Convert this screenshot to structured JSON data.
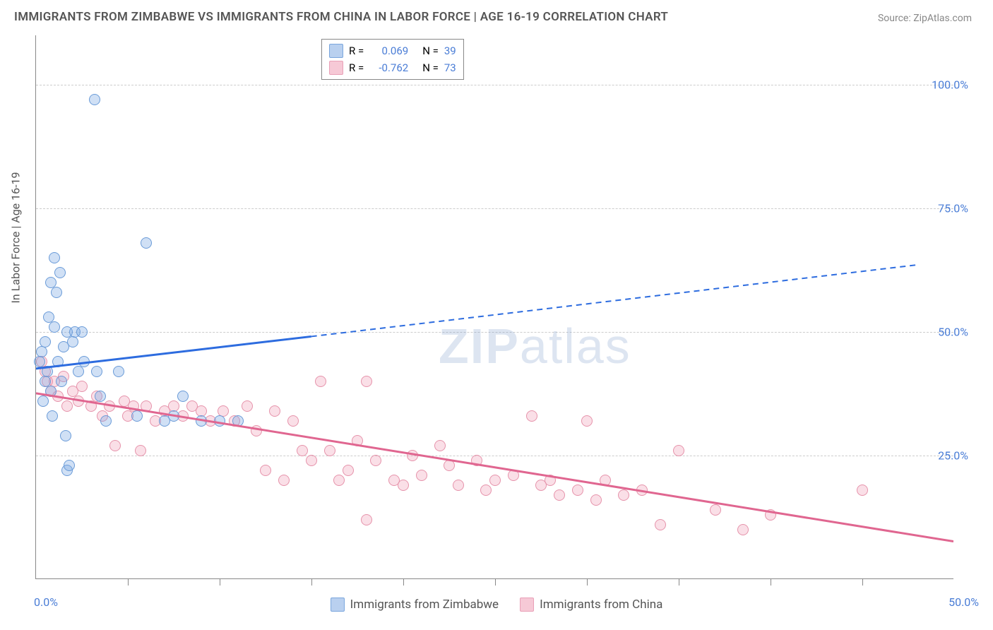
{
  "title": "IMMIGRANTS FROM ZIMBABWE VS IMMIGRANTS FROM CHINA IN LABOR FORCE | AGE 16-19 CORRELATION CHART",
  "source": "Source: ZipAtlas.com",
  "watermark_bold": "ZIP",
  "watermark_light": "atlas",
  "y_axis_label": "In Labor Force | Age 16-19",
  "chart": {
    "type": "scatter",
    "background_color": "#ffffff",
    "grid_color": "#cccccc",
    "axis_color": "#888888",
    "tick_label_color": "#4a7dd6",
    "xlim": [
      0,
      50
    ],
    "ylim": [
      0,
      110
    ],
    "y_ticks": [
      {
        "value": 25,
        "label": "25.0%"
      },
      {
        "value": 50,
        "label": "50.0%"
      },
      {
        "value": 75,
        "label": "75.0%"
      },
      {
        "value": 100,
        "label": "100.0%"
      }
    ],
    "x_tick_positions": [
      5,
      10,
      15,
      20,
      25,
      30,
      35,
      40,
      45
    ],
    "x_left_label": {
      "value": 0,
      "label": "0.0%"
    },
    "x_right_label": {
      "value": 50,
      "label": "50.0%"
    },
    "series": [
      {
        "id": "zimbabwe",
        "legend_label": "Immigrants from Zimbabwe",
        "fill_color": "rgba(120,165,225,0.35)",
        "stroke_color": "#6a9bd8",
        "line_color": "#2d6cdf",
        "swatch_fill": "#b9d0ef",
        "swatch_border": "#7aa6dd",
        "marker_radius": 8,
        "R_label": "R =",
        "R_value": "0.069",
        "N_label": "N =",
        "N_value": "39",
        "trend": {
          "x_start": 0,
          "y_start": 42.5,
          "x_solid_end": 15,
          "y_solid_end": 49,
          "x_end": 48,
          "y_end": 63.5,
          "dash": true
        },
        "points": [
          {
            "x": 0.2,
            "y": 44
          },
          {
            "x": 0.3,
            "y": 46
          },
          {
            "x": 0.4,
            "y": 36
          },
          {
            "x": 0.5,
            "y": 40
          },
          {
            "x": 0.5,
            "y": 48
          },
          {
            "x": 0.6,
            "y": 42
          },
          {
            "x": 0.7,
            "y": 53
          },
          {
            "x": 0.8,
            "y": 38
          },
          {
            "x": 0.8,
            "y": 60
          },
          {
            "x": 0.9,
            "y": 33
          },
          {
            "x": 1.0,
            "y": 51
          },
          {
            "x": 1.0,
            "y": 65
          },
          {
            "x": 1.1,
            "y": 58
          },
          {
            "x": 1.2,
            "y": 44
          },
          {
            "x": 1.3,
            "y": 62
          },
          {
            "x": 1.4,
            "y": 40
          },
          {
            "x": 1.5,
            "y": 47
          },
          {
            "x": 1.6,
            "y": 29
          },
          {
            "x": 1.7,
            "y": 50
          },
          {
            "x": 1.7,
            "y": 22
          },
          {
            "x": 1.8,
            "y": 23
          },
          {
            "x": 2.0,
            "y": 48
          },
          {
            "x": 2.1,
            "y": 50
          },
          {
            "x": 2.3,
            "y": 42
          },
          {
            "x": 2.5,
            "y": 50
          },
          {
            "x": 2.6,
            "y": 44
          },
          {
            "x": 3.2,
            "y": 97
          },
          {
            "x": 3.3,
            "y": 42
          },
          {
            "x": 3.5,
            "y": 37
          },
          {
            "x": 3.8,
            "y": 32
          },
          {
            "x": 4.5,
            "y": 42
          },
          {
            "x": 5.5,
            "y": 33
          },
          {
            "x": 6.0,
            "y": 68
          },
          {
            "x": 7.0,
            "y": 32
          },
          {
            "x": 7.5,
            "y": 33
          },
          {
            "x": 8.0,
            "y": 37
          },
          {
            "x": 9.0,
            "y": 32
          },
          {
            "x": 10.0,
            "y": 32
          },
          {
            "x": 11.0,
            "y": 32
          }
        ]
      },
      {
        "id": "china",
        "legend_label": "Immigrants from China",
        "fill_color": "rgba(240,150,175,0.30)",
        "stroke_color": "#e693ab",
        "line_color": "#e06690",
        "swatch_fill": "#f6c9d6",
        "swatch_border": "#e9a0b7",
        "marker_radius": 8,
        "R_label": "R =",
        "R_value": "-0.762",
        "N_label": "N =",
        "N_value": "73",
        "trend": {
          "x_start": 0,
          "y_start": 37.5,
          "x_end": 50,
          "y_end": 7.5,
          "dash": false
        },
        "points": [
          {
            "x": 0.3,
            "y": 44
          },
          {
            "x": 0.5,
            "y": 42
          },
          {
            "x": 0.6,
            "y": 40
          },
          {
            "x": 0.8,
            "y": 38
          },
          {
            "x": 1.0,
            "y": 40
          },
          {
            "x": 1.2,
            "y": 37
          },
          {
            "x": 1.5,
            "y": 41
          },
          {
            "x": 1.7,
            "y": 35
          },
          {
            "x": 2.0,
            "y": 38
          },
          {
            "x": 2.3,
            "y": 36
          },
          {
            "x": 2.5,
            "y": 39
          },
          {
            "x": 3.0,
            "y": 35
          },
          {
            "x": 3.3,
            "y": 37
          },
          {
            "x": 3.6,
            "y": 33
          },
          {
            "x": 4.0,
            "y": 35
          },
          {
            "x": 4.3,
            "y": 27
          },
          {
            "x": 4.8,
            "y": 36
          },
          {
            "x": 5.0,
            "y": 33
          },
          {
            "x": 5.3,
            "y": 35
          },
          {
            "x": 5.7,
            "y": 26
          },
          {
            "x": 6.0,
            "y": 35
          },
          {
            "x": 6.5,
            "y": 32
          },
          {
            "x": 7.0,
            "y": 34
          },
          {
            "x": 7.5,
            "y": 35
          },
          {
            "x": 8.0,
            "y": 33
          },
          {
            "x": 8.5,
            "y": 35
          },
          {
            "x": 9.0,
            "y": 34
          },
          {
            "x": 9.5,
            "y": 32
          },
          {
            "x": 10.2,
            "y": 34
          },
          {
            "x": 10.8,
            "y": 32
          },
          {
            "x": 11.5,
            "y": 35
          },
          {
            "x": 12.0,
            "y": 30
          },
          {
            "x": 12.5,
            "y": 22
          },
          {
            "x": 13.0,
            "y": 34
          },
          {
            "x": 13.5,
            "y": 20
          },
          {
            "x": 14.0,
            "y": 32
          },
          {
            "x": 14.5,
            "y": 26
          },
          {
            "x": 15.0,
            "y": 24
          },
          {
            "x": 15.5,
            "y": 40
          },
          {
            "x": 16.0,
            "y": 26
          },
          {
            "x": 16.5,
            "y": 20
          },
          {
            "x": 17.0,
            "y": 22
          },
          {
            "x": 17.5,
            "y": 28
          },
          {
            "x": 18.0,
            "y": 12
          },
          {
            "x": 18.0,
            "y": 40
          },
          {
            "x": 18.5,
            "y": 24
          },
          {
            "x": 19.5,
            "y": 20
          },
          {
            "x": 20.0,
            "y": 19
          },
          {
            "x": 20.5,
            "y": 25
          },
          {
            "x": 21.0,
            "y": 21
          },
          {
            "x": 22.0,
            "y": 27
          },
          {
            "x": 22.5,
            "y": 23
          },
          {
            "x": 23.0,
            "y": 19
          },
          {
            "x": 24.0,
            "y": 24
          },
          {
            "x": 24.5,
            "y": 18
          },
          {
            "x": 25.0,
            "y": 20
          },
          {
            "x": 26.0,
            "y": 21
          },
          {
            "x": 27.0,
            "y": 33
          },
          {
            "x": 27.5,
            "y": 19
          },
          {
            "x": 28.0,
            "y": 20
          },
          {
            "x": 28.5,
            "y": 17
          },
          {
            "x": 29.5,
            "y": 18
          },
          {
            "x": 30.0,
            "y": 32
          },
          {
            "x": 30.5,
            "y": 16
          },
          {
            "x": 31.0,
            "y": 20
          },
          {
            "x": 32.0,
            "y": 17
          },
          {
            "x": 33.0,
            "y": 18
          },
          {
            "x": 34.0,
            "y": 11
          },
          {
            "x": 35.0,
            "y": 26
          },
          {
            "x": 37.0,
            "y": 14
          },
          {
            "x": 38.5,
            "y": 10
          },
          {
            "x": 40.0,
            "y": 13
          },
          {
            "x": 45.0,
            "y": 18
          }
        ]
      }
    ]
  }
}
